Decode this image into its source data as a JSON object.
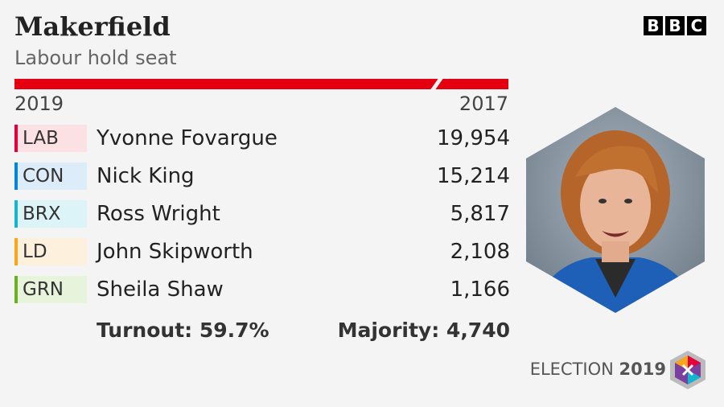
{
  "header": {
    "title": "Makerfield",
    "subtitle": "Labour hold seat"
  },
  "years": {
    "left": "2019",
    "right": "2017"
  },
  "rows": [
    {
      "party": "LAB",
      "color": "#e4003b",
      "tint": "#fbe0e4",
      "name": "Yvonne Fovargue",
      "votes": "19,954"
    },
    {
      "party": "CON",
      "color": "#0087dc",
      "tint": "#dcedf9",
      "name": "Nick King",
      "votes": "15,214"
    },
    {
      "party": "BRX",
      "color": "#12b6cf",
      "tint": "#dcf3f7",
      "name": "Ross Wright",
      "votes": "5,817"
    },
    {
      "party": "LD",
      "color": "#faa61a",
      "tint": "#fdf0dc",
      "name": "John Skipworth",
      "votes": "2,108"
    },
    {
      "party": "GRN",
      "color": "#6ab023",
      "tint": "#e8f3dc",
      "name": "Sheila Shaw",
      "votes": "1,166"
    }
  ],
  "summary": {
    "turnout": "Turnout: 59.7%",
    "majority": "Majority: 4,740"
  },
  "branding": {
    "logo": [
      "B",
      "B",
      "C"
    ],
    "election": "ELECTION",
    "year": "2019"
  }
}
